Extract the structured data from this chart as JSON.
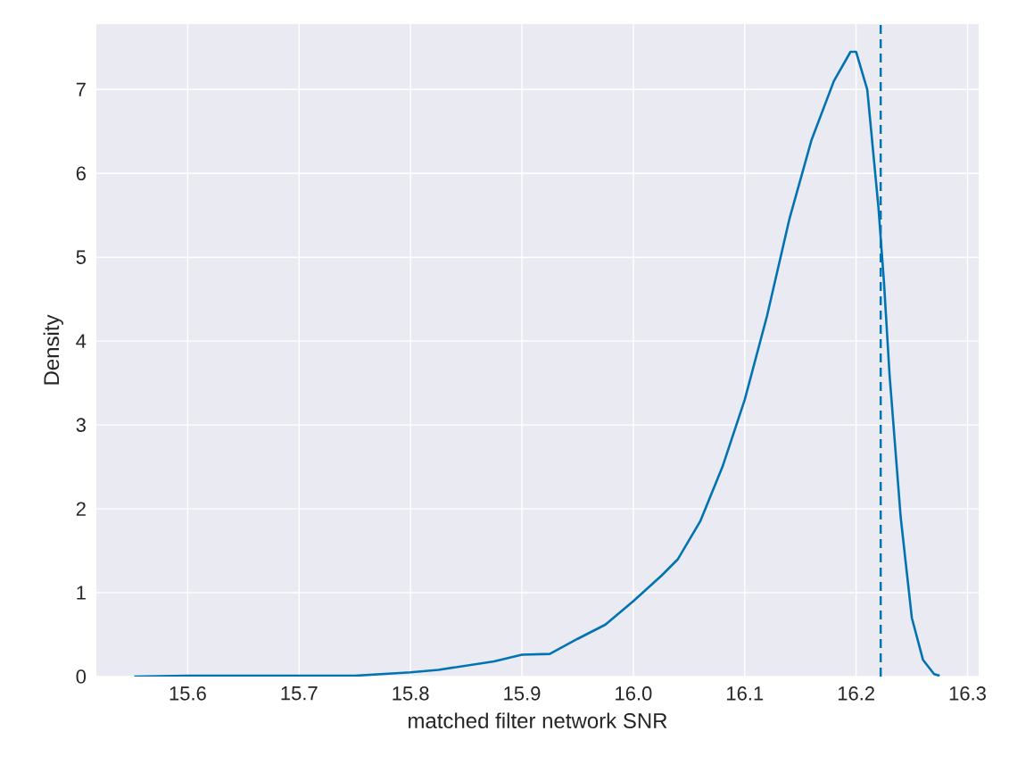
{
  "chart_data": {
    "type": "line",
    "xlabel": "matched filter network SNR",
    "ylabel": "Density",
    "xlim": [
      15.518,
      16.31
    ],
    "ylim": [
      0,
      7.78
    ],
    "xticks": [
      {
        "value": 15.6,
        "label": "15.6"
      },
      {
        "value": 15.7,
        "label": "15.7"
      },
      {
        "value": 15.8,
        "label": "15.8"
      },
      {
        "value": 15.9,
        "label": "15.9"
      },
      {
        "value": 16.0,
        "label": "16.0"
      },
      {
        "value": 16.1,
        "label": "16.1"
      },
      {
        "value": 16.2,
        "label": "16.2"
      },
      {
        "value": 16.3,
        "label": "16.3"
      }
    ],
    "yticks": [
      0,
      1,
      2,
      3,
      4,
      5,
      6,
      7
    ],
    "grid": true,
    "line_style": "solid",
    "marker": "none",
    "series": [
      {
        "color": "#0173b2",
        "x": [
          15.552,
          15.6,
          15.65,
          15.7,
          15.75,
          15.8,
          15.825,
          15.85,
          15.875,
          15.9,
          15.925,
          15.95,
          15.975,
          16.0,
          16.025,
          16.04,
          16.06,
          16.08,
          16.1,
          16.12,
          16.14,
          16.16,
          16.18,
          16.195,
          16.2,
          16.21,
          16.22,
          16.225,
          16.23,
          16.24,
          16.25,
          16.26,
          16.27,
          16.275
        ],
        "values": [
          0,
          0.01,
          0.01,
          0.01,
          0.01,
          0.05,
          0.08,
          0.13,
          0.18,
          0.26,
          0.27,
          0.45,
          0.62,
          0.9,
          1.2,
          1.4,
          1.85,
          2.5,
          3.3,
          4.3,
          5.45,
          6.4,
          7.1,
          7.45,
          7.45,
          7.0,
          5.6,
          4.7,
          3.6,
          1.9,
          0.7,
          0.2,
          0.03,
          0.01
        ]
      }
    ],
    "ref_lines": [
      {
        "axis": "x",
        "value": 16.222,
        "color": "#0173b2",
        "line_style": "dashed"
      }
    ]
  }
}
